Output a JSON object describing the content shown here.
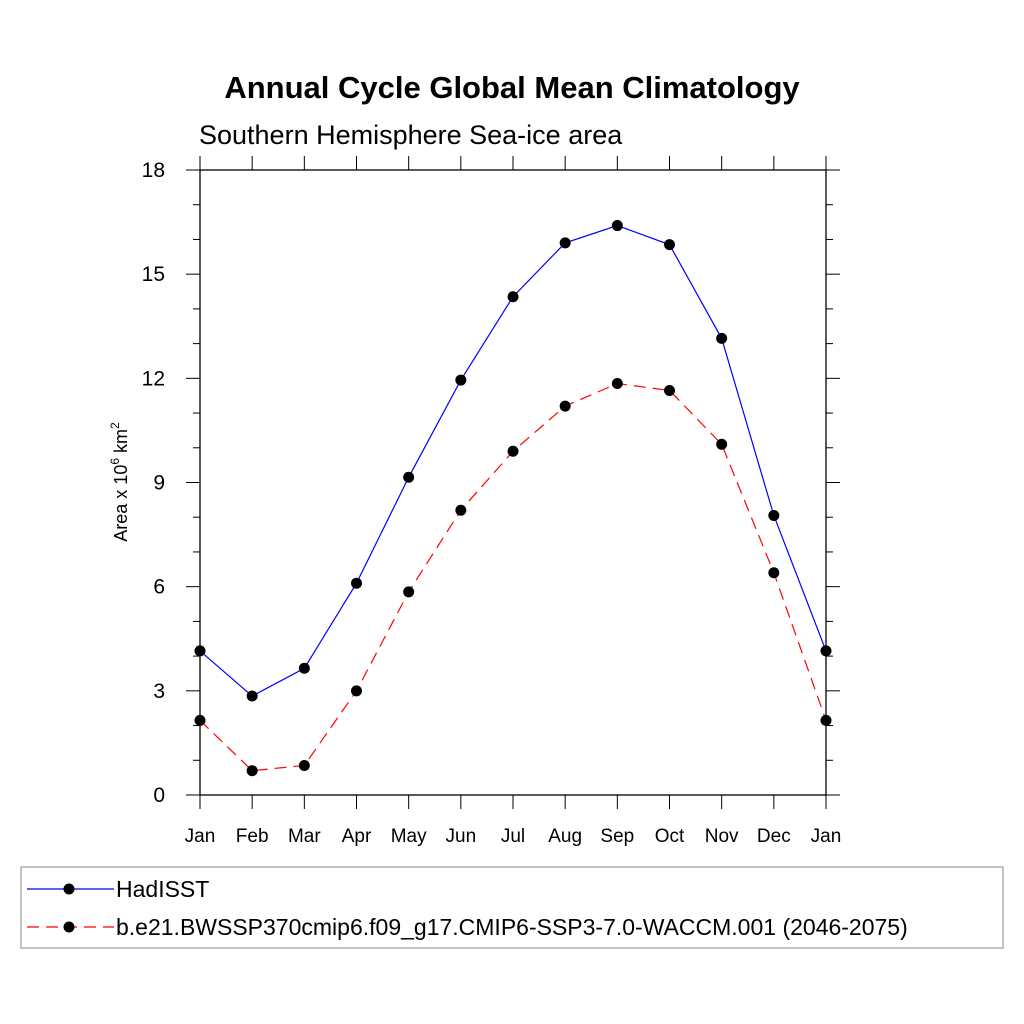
{
  "chart_data": {
    "type": "line",
    "title": "Annual Cycle Global Mean Climatology",
    "subtitle": "Southern Hemisphere Sea-ice area",
    "ylabel": "Area x 10",
    "ylabel_sup": "6",
    "ylabel_unit": "km",
    "ylabel_unit_sup": "2",
    "categories": [
      "Jan",
      "Feb",
      "Mar",
      "Apr",
      "May",
      "Jun",
      "Jul",
      "Aug",
      "Sep",
      "Oct",
      "Nov",
      "Dec",
      "Jan"
    ],
    "ylim": [
      0,
      18
    ],
    "yticks": [
      "0",
      "3",
      "6",
      "9",
      "12",
      "15",
      "18"
    ],
    "legend_position": "bottom",
    "series": [
      {
        "name": "HadISST",
        "color": "#0000ff",
        "dash": "solid",
        "values": [
          4.15,
          2.85,
          3.65,
          6.1,
          9.15,
          11.95,
          14.35,
          15.9,
          16.4,
          15.85,
          13.15,
          8.05,
          4.15
        ]
      },
      {
        "name": "b.e21.BWSSP370cmip6.f09_g17.CMIP6-SSP3-7.0-WACCM.001 (2046-2075)",
        "color": "#ff0000",
        "dash": "dashed",
        "values": [
          2.15,
          0.7,
          0.85,
          3.0,
          5.85,
          8.2,
          9.9,
          11.2,
          11.85,
          11.65,
          10.1,
          6.4,
          2.15
        ]
      }
    ]
  }
}
